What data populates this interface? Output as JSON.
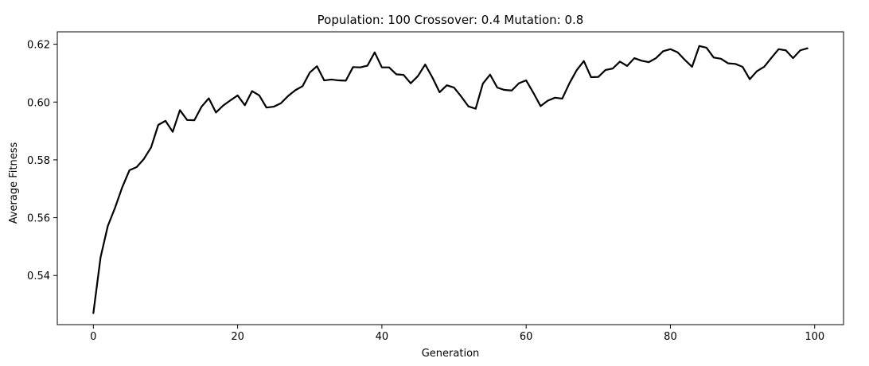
{
  "chart_data": {
    "type": "line",
    "title": "Population: 100 Crossover: 0.4 Mutation: 0.8",
    "xlabel": "Generation",
    "ylabel": "Average Fitness",
    "xlim": [
      -5,
      104
    ],
    "ylim": [
      0.523,
      0.6243
    ],
    "xticks": [
      0,
      20,
      40,
      60,
      80,
      100
    ],
    "yticks": [
      0.54,
      0.56,
      0.58,
      0.6,
      0.62
    ],
    "xtick_labels": [
      "0",
      "20",
      "40",
      "60",
      "80",
      "100"
    ],
    "ytick_labels": [
      "0.54",
      "0.56",
      "0.58",
      "0.60",
      "0.62"
    ],
    "grid": false,
    "legend": null,
    "line_color": "#000000",
    "series": [
      {
        "values": [
          0.527,
          0.5463,
          0.5571,
          0.5634,
          0.5705,
          0.5764,
          0.5775,
          0.5803,
          0.5843,
          0.5921,
          0.5935,
          0.5897,
          0.5972,
          0.5938,
          0.5937,
          0.5984,
          0.6013,
          0.5964,
          0.5988,
          0.6006,
          0.6023,
          0.5989,
          0.6038,
          0.6023,
          0.5981,
          0.5984,
          0.5996,
          0.6021,
          0.6041,
          0.6055,
          0.6102,
          0.6124,
          0.6075,
          0.6078,
          0.6075,
          0.6074,
          0.6121,
          0.612,
          0.6126,
          0.6172,
          0.612,
          0.612,
          0.6096,
          0.6094,
          0.6065,
          0.609,
          0.613,
          0.6085,
          0.6034,
          0.6058,
          0.605,
          0.6019,
          0.5985,
          0.5977,
          0.6064,
          0.6095,
          0.605,
          0.6042,
          0.604,
          0.6065,
          0.6075,
          0.6032,
          0.5986,
          0.6005,
          0.6015,
          0.6012,
          0.6065,
          0.611,
          0.6142,
          0.6086,
          0.6087,
          0.6111,
          0.6116,
          0.614,
          0.6125,
          0.6152,
          0.6143,
          0.6138,
          0.6152,
          0.6176,
          0.6183,
          0.6172,
          0.6146,
          0.6122,
          0.6194,
          0.6188,
          0.6154,
          0.615,
          0.6134,
          0.6132,
          0.6122,
          0.6079,
          0.6107,
          0.6122,
          0.6153,
          0.6183,
          0.6179,
          0.6152,
          0.6179,
          0.6186
        ]
      }
    ]
  }
}
